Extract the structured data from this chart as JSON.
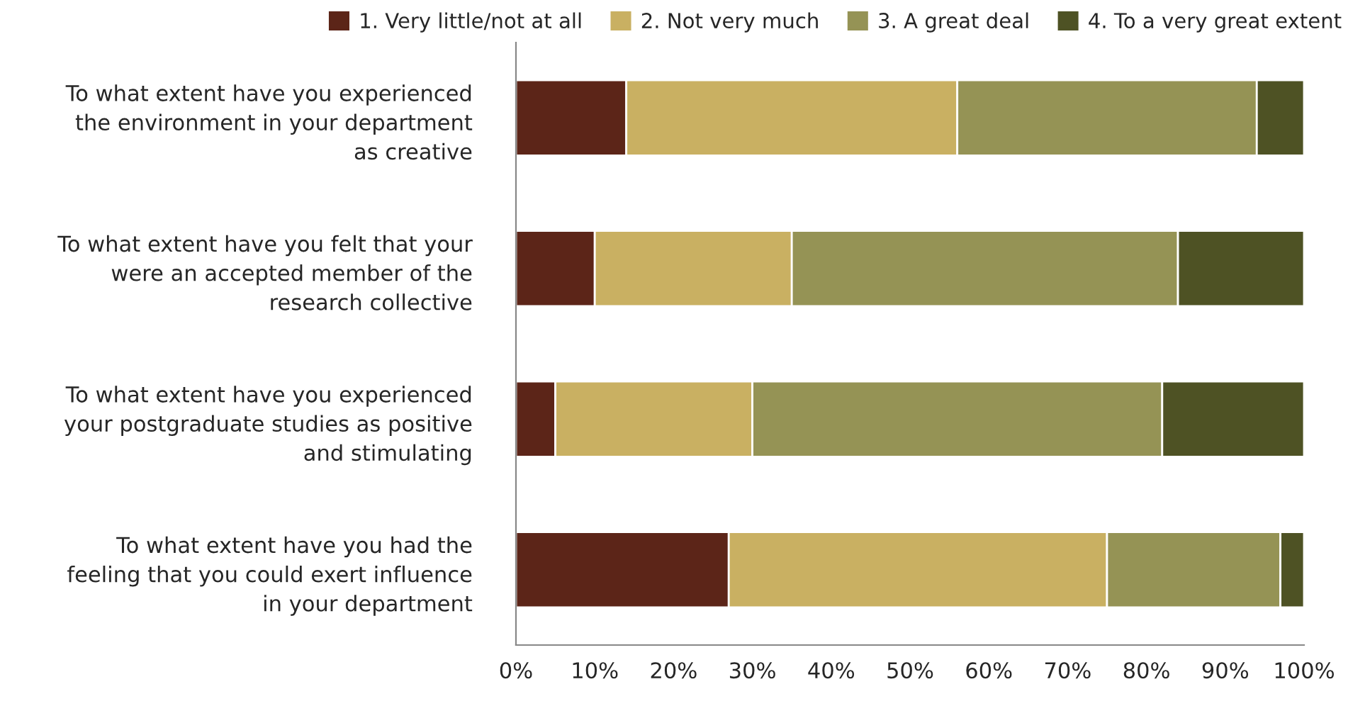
{
  "chart_data": {
    "type": "bar",
    "orientation": "horizontal",
    "stacked": true,
    "categories": [
      "To what extent have you experienced\nthe environment in your department\nas creative",
      "To what extent have you felt that your\nwere an accepted member of the\nresearch collective",
      "To what extent have you experienced\nyour postgraduate studies as positive\nand stimulating",
      "To what extent have you had the\nfeeling that you could exert influence\nin your department"
    ],
    "series": [
      {
        "name": "1. Very little/not at all",
        "color": "#5c2518",
        "values": [
          14,
          10,
          5,
          27
        ]
      },
      {
        "name": "2. Not very much",
        "color": "#c9b062",
        "values": [
          42,
          25,
          25,
          48
        ]
      },
      {
        "name": "3. A great deal",
        "color": "#959355",
        "values": [
          38,
          49,
          52,
          22
        ]
      },
      {
        "name": "4. To a very great extent",
        "color": "#4e5224",
        "values": [
          6,
          16,
          18,
          3
        ]
      }
    ],
    "xlim": [
      0,
      100
    ],
    "xticks": [
      {
        "value": 0,
        "label": "0%"
      },
      {
        "value": 10,
        "label": "10%"
      },
      {
        "value": 20,
        "label": "20%"
      },
      {
        "value": 30,
        "label": "30%"
      },
      {
        "value": 40,
        "label": "40%"
      },
      {
        "value": 50,
        "label": "50%"
      },
      {
        "value": 60,
        "label": "60%"
      },
      {
        "value": 70,
        "label": "70%"
      },
      {
        "value": 80,
        "label": "80%"
      },
      {
        "value": 90,
        "label": "90%"
      },
      {
        "value": 100,
        "label": "100%"
      }
    ],
    "grid": false,
    "legend": "top"
  }
}
